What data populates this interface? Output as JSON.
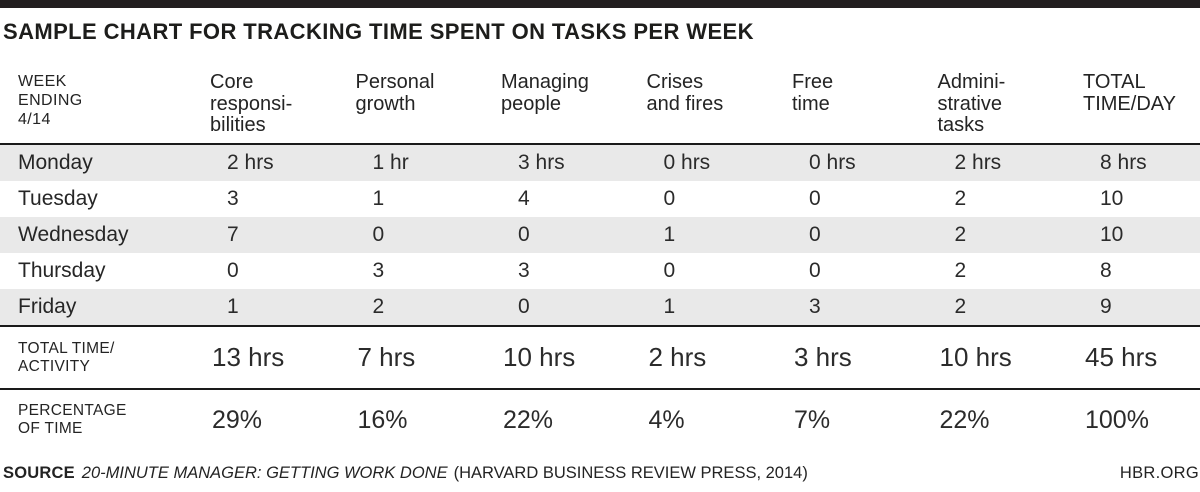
{
  "title": "SAMPLE CHART FOR TRACKING TIME SPENT ON TASKS PER WEEK",
  "colors": {
    "top_bar": "#231f20",
    "row_stripe": "#e9e9e9",
    "rule": "#1a1a1a",
    "text": "#232323"
  },
  "table": {
    "week_label_lines": [
      "WEEK",
      "ENDING",
      "4/14"
    ],
    "header_lines": [
      [
        "Core",
        "responsi-",
        "bilities"
      ],
      [
        "Personal",
        "growth"
      ],
      [
        "Managing",
        "people"
      ],
      [
        "Crises",
        "and fires"
      ],
      [
        "Free",
        "time"
      ],
      [
        "Admini-",
        "strative",
        "tasks"
      ],
      [
        "TOTAL",
        "TIME/DAY"
      ]
    ],
    "days": [
      {
        "label": "Monday",
        "values": [
          "2 hrs",
          "1 hr",
          "3 hrs",
          "0 hrs",
          "0 hrs",
          "2 hrs",
          "8 hrs"
        ]
      },
      {
        "label": "Tuesday",
        "values": [
          "3",
          "1",
          "4",
          "0",
          "0",
          "2",
          "10"
        ]
      },
      {
        "label": "Wednesday",
        "values": [
          "7",
          "0",
          "0",
          "1",
          "0",
          "2",
          "10"
        ]
      },
      {
        "label": "Thursday",
        "values": [
          "0",
          "3",
          "3",
          "0",
          "0",
          "2",
          "8"
        ]
      },
      {
        "label": "Friday",
        "values": [
          "1",
          "2",
          "0",
          "1",
          "3",
          "2",
          "9"
        ]
      }
    ],
    "totals": {
      "label_lines": [
        "TOTAL TIME/",
        "ACTIVITY"
      ],
      "values": [
        "13 hrs",
        "7 hrs",
        "10 hrs",
        "2 hrs",
        "3 hrs",
        "10 hrs",
        "45 hrs"
      ]
    },
    "percent": {
      "label_lines": [
        "PERCENTAGE",
        "OF TIME"
      ],
      "values": [
        "29%",
        "16%",
        "22%",
        "4%",
        "7%",
        "22%",
        "100%"
      ]
    }
  },
  "footer": {
    "source_label": "SOURCE",
    "source_title": "20-MINUTE MANAGER: GETTING WORK DONE",
    "source_publisher": "(HARVARD BUSINESS REVIEW PRESS, 2014)",
    "site": "HBR.ORG"
  },
  "chart_data": {
    "type": "table",
    "title": "SAMPLE CHART FOR TRACKING TIME SPENT ON TASKS PER WEEK",
    "units": "hours",
    "columns": [
      "WEEK ENDING 4/14",
      "Core responsibilities",
      "Personal growth",
      "Managing people",
      "Crises and fires",
      "Free time",
      "Administrative tasks",
      "TOTAL TIME/DAY"
    ],
    "rows": [
      [
        "Monday",
        2,
        1,
        3,
        0,
        0,
        2,
        8
      ],
      [
        "Tuesday",
        3,
        1,
        4,
        0,
        0,
        2,
        10
      ],
      [
        "Wednesday",
        7,
        0,
        0,
        1,
        0,
        2,
        10
      ],
      [
        "Thursday",
        0,
        3,
        3,
        0,
        0,
        2,
        8
      ],
      [
        "Friday",
        1,
        2,
        0,
        1,
        3,
        2,
        9
      ],
      [
        "TOTAL TIME/ACTIVITY",
        13,
        7,
        10,
        2,
        3,
        10,
        45
      ],
      [
        "PERCENTAGE OF TIME",
        "29%",
        "16%",
        "22%",
        "4%",
        "7%",
        "22%",
        "100%"
      ]
    ]
  }
}
